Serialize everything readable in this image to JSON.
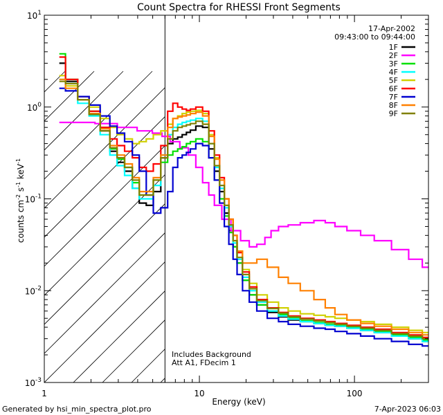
{
  "chart_data": {
    "type": "line",
    "title": "Count Spectra for RHESSI Front Segments",
    "xlabel": "Energy (keV)",
    "ylabel": "counts cm-2 s-1 keV-1",
    "xscale": "log",
    "yscale": "log",
    "xlim": [
      1.0,
      300.0
    ],
    "ylim": [
      0.001,
      10.0
    ],
    "x_ticks": [
      {
        "value": 1,
        "label": "1"
      },
      {
        "value": 10,
        "label": "10"
      },
      {
        "value": 100,
        "label": "100"
      }
    ],
    "y_ticks": [
      {
        "value": 10,
        "base": "10",
        "exp": "1"
      },
      {
        "value": 1,
        "base": "10",
        "exp": "0"
      },
      {
        "value": 0.1,
        "base": "10",
        "exp": "-1"
      },
      {
        "value": 0.01,
        "base": "10",
        "exp": "-2"
      },
      {
        "value": 0.001,
        "base": "10",
        "exp": "-3"
      }
    ],
    "date": "17-Apr-2002",
    "time_range": "09:43:00 to 09:44:00",
    "hatch_region_max_keV": 6.0,
    "annotations": [
      "Includes Background",
      "Att A1, FDecim 1"
    ],
    "series": [
      {
        "name": "1F",
        "color": "#000000",
        "energies": [
          1.25,
          1.5,
          1.8,
          2.1,
          2.5,
          2.8,
          3.1,
          3.5,
          3.9,
          4.3,
          4.8,
          5.3,
          6.0,
          6.5,
          7.0,
          7.5,
          8.0,
          8.5,
          9.0,
          10.0,
          11.0,
          12.0,
          13.0,
          14.0,
          15.0,
          16.0,
          17.0,
          18.0,
          20.0,
          22.0,
          25.0,
          30.0,
          35.0,
          40.0,
          50.0,
          60.0,
          70.0,
          80.0,
          100.0,
          120.0,
          150.0,
          200.0,
          250.0,
          300.0
        ],
        "values": [
          3.0,
          1.9,
          1.2,
          0.85,
          0.55,
          0.33,
          0.25,
          0.2,
          0.13,
          0.09,
          0.085,
          0.12,
          0.28,
          0.4,
          0.45,
          0.47,
          0.5,
          0.53,
          0.56,
          0.62,
          0.6,
          0.35,
          0.2,
          0.12,
          0.07,
          0.045,
          0.03,
          0.02,
          0.013,
          0.009,
          0.007,
          0.0058,
          0.0052,
          0.0048,
          0.0046,
          0.0044,
          0.0042,
          0.0041,
          0.0039,
          0.0037,
          0.0035,
          0.0032,
          0.003,
          0.0028
        ]
      },
      {
        "name": "2F",
        "color": "#ff00ff",
        "energies": [
          1.25,
          1.8,
          2.5,
          3.5,
          4.5,
          5.5,
          6.0,
          7.0,
          8.0,
          9.0,
          10.0,
          11.0,
          12.0,
          13.0,
          15.0,
          17.0,
          20.0,
          22.0,
          25.0,
          28.0,
          30.0,
          35.0,
          40.0,
          50.0,
          60.0,
          70.0,
          80.0,
          100.0,
          120.0,
          150.0,
          200.0,
          250.0,
          300.0
        ],
        "values": [
          0.68,
          0.68,
          0.66,
          0.6,
          0.55,
          0.52,
          0.48,
          0.42,
          0.36,
          0.3,
          0.22,
          0.15,
          0.11,
          0.085,
          0.06,
          0.045,
          0.035,
          0.03,
          0.032,
          0.038,
          0.045,
          0.05,
          0.052,
          0.055,
          0.058,
          0.055,
          0.05,
          0.045,
          0.04,
          0.035,
          0.028,
          0.022,
          0.018
        ]
      },
      {
        "name": "3F",
        "color": "#00e000",
        "energies": [
          1.25,
          1.5,
          1.8,
          2.1,
          2.5,
          2.8,
          3.1,
          3.5,
          3.9,
          4.3,
          4.8,
          5.3,
          6.0,
          6.5,
          7.0,
          7.5,
          8.0,
          8.5,
          9.0,
          10.0,
          11.0,
          12.0,
          13.0,
          14.0,
          15.0,
          16.0,
          17.0,
          18.0,
          20.0,
          22.0,
          25.0,
          30.0,
          35.0,
          40.0,
          50.0,
          60.0,
          70.0,
          80.0,
          100.0,
          120.0,
          150.0,
          200.0,
          250.0,
          300.0
        ],
        "values": [
          3.8,
          2.0,
          1.3,
          0.9,
          0.6,
          0.35,
          0.27,
          0.22,
          0.15,
          0.11,
          0.11,
          0.16,
          0.25,
          0.3,
          0.33,
          0.35,
          0.37,
          0.4,
          0.42,
          0.45,
          0.42,
          0.28,
          0.16,
          0.1,
          0.065,
          0.043,
          0.03,
          0.02,
          0.013,
          0.009,
          0.007,
          0.006,
          0.0055,
          0.005,
          0.0047,
          0.0045,
          0.0043,
          0.0042,
          0.004,
          0.0038,
          0.0036,
          0.0033,
          0.0031,
          0.0029
        ]
      },
      {
        "name": "4F",
        "color": "#00ffff",
        "energies": [
          1.25,
          1.5,
          1.8,
          2.1,
          2.5,
          2.8,
          3.1,
          3.5,
          3.9,
          4.3,
          4.8,
          5.3,
          6.0,
          6.5,
          7.0,
          7.5,
          8.0,
          8.5,
          9.0,
          10.0,
          11.0,
          12.0,
          13.0,
          14.0,
          15.0,
          16.0,
          17.0,
          18.0,
          20.0,
          22.0,
          25.0,
          30.0,
          35.0,
          40.0,
          50.0,
          60.0,
          70.0,
          80.0,
          100.0,
          120.0,
          150.0,
          200.0,
          250.0,
          300.0
        ],
        "values": [
          2.0,
          1.8,
          1.1,
          0.8,
          0.5,
          0.3,
          0.23,
          0.18,
          0.13,
          0.1,
          0.1,
          0.14,
          0.3,
          0.5,
          0.6,
          0.65,
          0.68,
          0.7,
          0.72,
          0.75,
          0.7,
          0.4,
          0.22,
          0.13,
          0.08,
          0.05,
          0.033,
          0.022,
          0.014,
          0.01,
          0.0075,
          0.006,
          0.0053,
          0.0049,
          0.0046,
          0.0044,
          0.0042,
          0.0041,
          0.0039,
          0.0037,
          0.0035,
          0.0032,
          0.003,
          0.0028
        ]
      },
      {
        "name": "5F",
        "color": "#d0d000",
        "energies": [
          1.25,
          1.5,
          1.8,
          2.1,
          2.5,
          2.8,
          3.1,
          3.5,
          3.9,
          4.3,
          4.8,
          5.3,
          6.0,
          6.5,
          7.0,
          7.5,
          8.0,
          8.5,
          9.0,
          10.0,
          11.0,
          12.0,
          13.0,
          14.0,
          15.0,
          16.0,
          17.0,
          18.0,
          20.0,
          22.0,
          25.0,
          30.0,
          35.0,
          40.0,
          50.0,
          60.0,
          70.0,
          80.0,
          100.0,
          120.0,
          150.0,
          200.0,
          250.0,
          300.0
        ],
        "values": [
          2.2,
          1.7,
          1.3,
          1.0,
          0.75,
          0.6,
          0.5,
          0.45,
          0.4,
          0.42,
          0.45,
          0.5,
          0.55,
          0.65,
          0.75,
          0.8,
          0.85,
          0.88,
          0.9,
          0.92,
          0.85,
          0.5,
          0.28,
          0.16,
          0.1,
          0.06,
          0.04,
          0.026,
          0.017,
          0.012,
          0.009,
          0.0075,
          0.0065,
          0.006,
          0.0056,
          0.0054,
          0.0052,
          0.005,
          0.0048,
          0.0046,
          0.0043,
          0.004,
          0.0037,
          0.0035
        ]
      },
      {
        "name": "6F",
        "color": "#ff0000",
        "energies": [
          1.25,
          1.5,
          1.8,
          2.1,
          2.5,
          2.8,
          3.1,
          3.5,
          3.9,
          4.3,
          4.8,
          5.3,
          6.0,
          6.5,
          7.0,
          7.5,
          8.0,
          8.5,
          9.0,
          10.0,
          11.0,
          12.0,
          13.0,
          14.0,
          15.0,
          16.0,
          17.0,
          18.0,
          20.0,
          22.0,
          25.0,
          30.0,
          35.0,
          40.0,
          50.0,
          60.0,
          70.0,
          80.0,
          100.0,
          120.0,
          150.0,
          200.0,
          250.0,
          300.0
        ],
        "values": [
          3.5,
          2.0,
          1.3,
          0.9,
          0.6,
          0.45,
          0.38,
          0.33,
          0.28,
          0.22,
          0.2,
          0.24,
          0.38,
          0.9,
          1.1,
          1.0,
          0.95,
          0.92,
          0.95,
          1.0,
          0.9,
          0.55,
          0.3,
          0.17,
          0.1,
          0.06,
          0.04,
          0.026,
          0.016,
          0.011,
          0.008,
          0.0065,
          0.0058,
          0.0053,
          0.005,
          0.0048,
          0.0046,
          0.0044,
          0.0042,
          0.004,
          0.0038,
          0.0035,
          0.0033,
          0.0031
        ]
      },
      {
        "name": "7F",
        "color": "#0000d0",
        "energies": [
          1.25,
          1.5,
          1.8,
          2.1,
          2.5,
          2.8,
          3.1,
          3.5,
          3.9,
          4.3,
          4.8,
          5.3,
          6.0,
          6.5,
          7.0,
          7.5,
          8.0,
          8.5,
          9.0,
          10.0,
          11.0,
          12.0,
          13.0,
          14.0,
          15.0,
          16.0,
          17.0,
          18.0,
          20.0,
          22.0,
          25.0,
          30.0,
          35.0,
          40.0,
          50.0,
          60.0,
          70.0,
          80.0,
          100.0,
          120.0,
          150.0,
          200.0,
          250.0,
          300.0
        ],
        "values": [
          1.6,
          1.5,
          1.3,
          1.05,
          0.8,
          0.62,
          0.52,
          0.42,
          0.3,
          0.2,
          0.11,
          0.07,
          0.08,
          0.12,
          0.22,
          0.28,
          0.3,
          0.32,
          0.35,
          0.4,
          0.38,
          0.28,
          0.16,
          0.09,
          0.05,
          0.032,
          0.022,
          0.015,
          0.01,
          0.0075,
          0.006,
          0.005,
          0.0046,
          0.0043,
          0.0041,
          0.0039,
          0.0038,
          0.0036,
          0.0034,
          0.0032,
          0.003,
          0.0028,
          0.0026,
          0.0025
        ]
      },
      {
        "name": "8F",
        "color": "#ff8000",
        "energies": [
          1.25,
          1.5,
          1.8,
          2.1,
          2.5,
          2.8,
          3.1,
          3.5,
          3.9,
          4.3,
          4.8,
          5.3,
          6.0,
          6.5,
          7.0,
          7.5,
          8.0,
          8.5,
          9.0,
          10.0,
          11.0,
          12.0,
          13.0,
          14.0,
          15.0,
          16.0,
          17.0,
          18.0,
          20.0,
          22.0,
          25.0,
          30.0,
          35.0,
          40.0,
          50.0,
          60.0,
          70.0,
          80.0,
          100.0,
          120.0,
          150.0,
          200.0,
          250.0,
          300.0
        ],
        "values": [
          2.0,
          1.6,
          1.2,
          0.85,
          0.58,
          0.38,
          0.3,
          0.24,
          0.17,
          0.12,
          0.12,
          0.17,
          0.3,
          0.6,
          0.75,
          0.78,
          0.8,
          0.82,
          0.85,
          0.88,
          0.8,
          0.48,
          0.27,
          0.16,
          0.1,
          0.06,
          0.04,
          0.027,
          0.02,
          0.02,
          0.022,
          0.018,
          0.014,
          0.012,
          0.01,
          0.008,
          0.0065,
          0.0055,
          0.0048,
          0.0044,
          0.0041,
          0.0038,
          0.0035,
          0.0033
        ]
      },
      {
        "name": "9F",
        "color": "#808000",
        "energies": [
          1.25,
          1.5,
          1.8,
          2.1,
          2.5,
          2.8,
          3.1,
          3.5,
          3.9,
          4.3,
          4.8,
          5.3,
          6.0,
          6.5,
          7.0,
          7.5,
          8.0,
          8.5,
          9.0,
          10.0,
          11.0,
          12.0,
          13.0,
          14.0,
          15.0,
          16.0,
          17.0,
          18.0,
          20.0,
          22.0,
          25.0,
          30.0,
          35.0,
          40.0,
          50.0,
          60.0,
          70.0,
          80.0,
          100.0,
          120.0,
          150.0,
          200.0,
          250.0,
          300.0
        ],
        "values": [
          1.9,
          1.8,
          1.2,
          0.83,
          0.55,
          0.36,
          0.28,
          0.22,
          0.16,
          0.11,
          0.11,
          0.16,
          0.28,
          0.45,
          0.55,
          0.6,
          0.62,
          0.64,
          0.66,
          0.7,
          0.65,
          0.4,
          0.23,
          0.14,
          0.085,
          0.052,
          0.035,
          0.023,
          0.015,
          0.0105,
          0.0078,
          0.0064,
          0.0057,
          0.0052,
          0.0049,
          0.0047,
          0.0045,
          0.0043,
          0.0041,
          0.0039,
          0.0037,
          0.0034,
          0.0032,
          0.003
        ]
      }
    ]
  },
  "footer": {
    "left": "Generated by hsi_min_spectra_plot.pro",
    "right": "7-Apr-2023 06:03"
  }
}
